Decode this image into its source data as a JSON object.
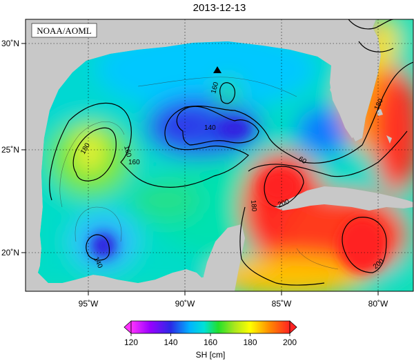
{
  "title": "2013-12-13",
  "credit": "NOAA/AOML",
  "colorbar": {
    "label": "SH [cm]",
    "ticks": [
      "120",
      "140",
      "160",
      "180",
      "200"
    ],
    "range": [
      120,
      200
    ],
    "colors": [
      "#ff33ff",
      "#9900ff",
      "#2a2ae6",
      "#00b4ff",
      "#00e1d7",
      "#22e02a",
      "#a8e61e",
      "#ffff00",
      "#ff8c00",
      "#ff2222"
    ]
  },
  "axes": {
    "x_labels": [
      "95˚W",
      "90˚W",
      "85˚W",
      "80˚W"
    ],
    "y_labels": [
      "30˚N",
      "25˚N",
      "20˚N"
    ]
  },
  "contour_labels": [
    "180",
    "160",
    "160",
    "140",
    "160",
    "60",
    "180",
    "200",
    "140",
    "180",
    "200"
  ],
  "marker": {
    "shape": "triangle",
    "lat": 28.8,
    "lon": -88.4
  },
  "colors": {
    "land": "#c8c8c8",
    "frame": "#000000"
  }
}
